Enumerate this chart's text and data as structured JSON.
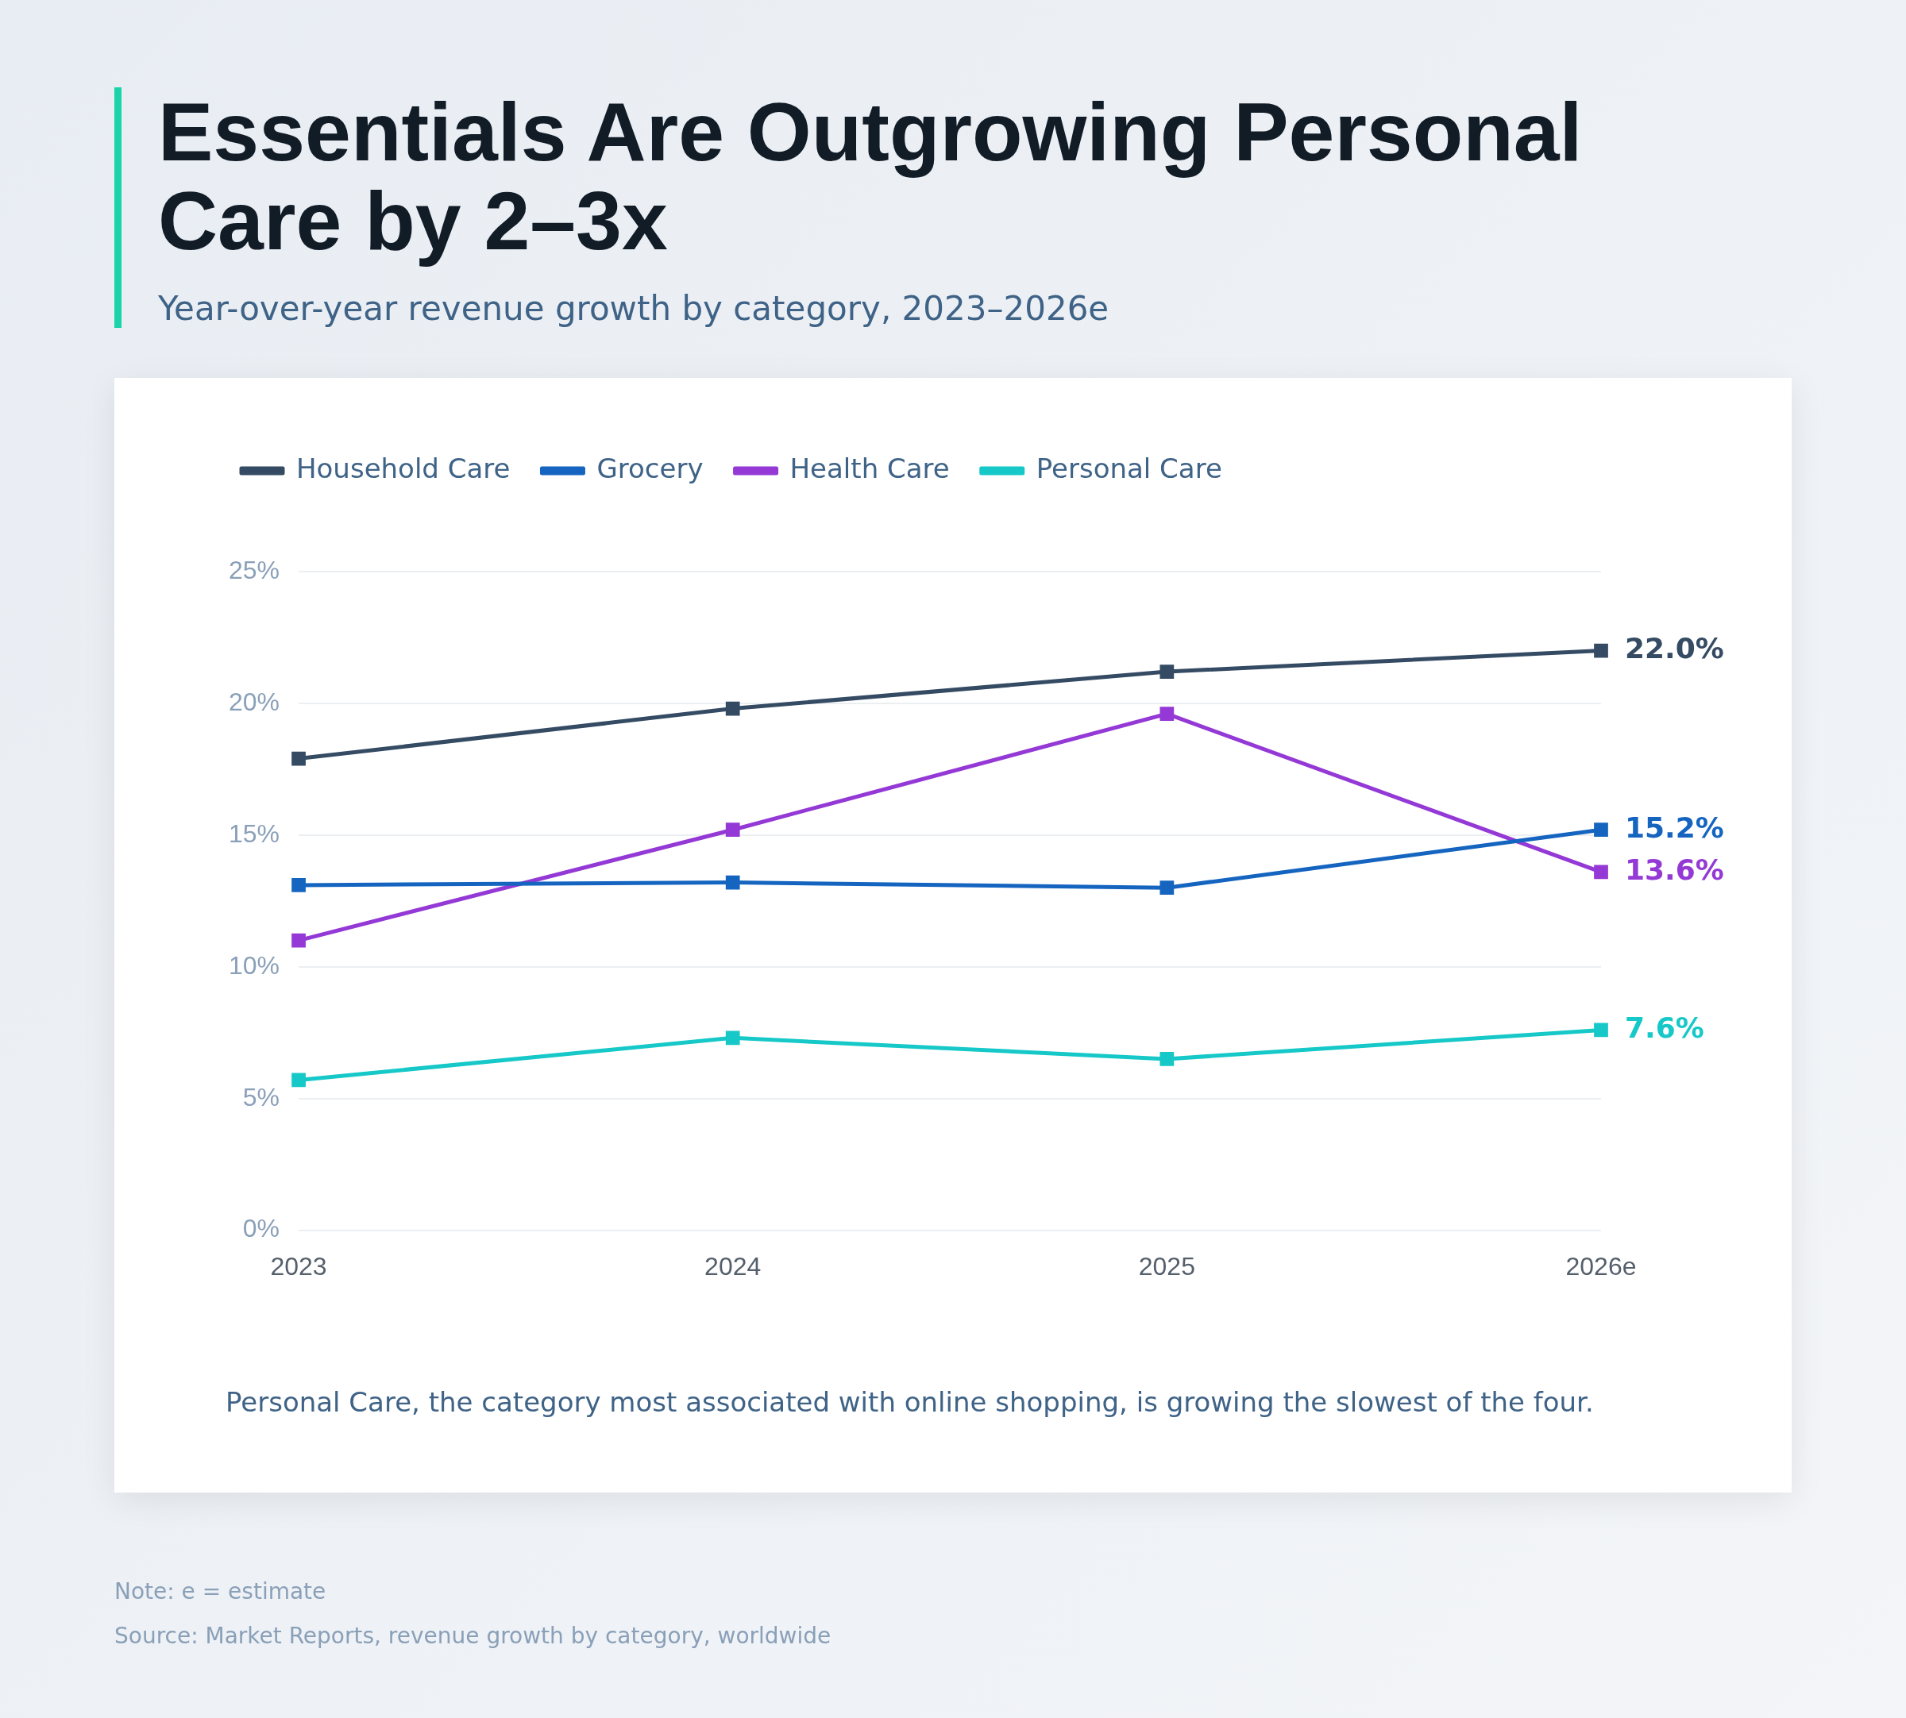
{
  "chart_data": {
    "type": "line",
    "title": "Essentials Are Outgrowing Personal Care by 2–3x",
    "subtitle": "Year-over-year revenue growth by category, 2023–2026e",
    "categories": [
      "2023",
      "2024",
      "2025",
      "2026e"
    ],
    "series": [
      {
        "name": "Household Care",
        "color": "#344b63",
        "values": [
          17.9,
          19.8,
          21.2,
          22.0
        ],
        "value_labels": [
          null,
          null,
          null,
          "22.0%"
        ]
      },
      {
        "name": "Grocery",
        "color": "#1565c0",
        "values": [
          13.1,
          13.2,
          13.0,
          15.2
        ],
        "value_labels": [
          null,
          null,
          null,
          "15.2%"
        ]
      },
      {
        "name": "Health Care",
        "color": "#9438d6",
        "values": [
          11.0,
          15.2,
          19.6,
          13.6
        ],
        "value_labels": [
          null,
          null,
          null,
          "13.6%"
        ]
      },
      {
        "name": "Personal Care",
        "color": "#16c8c8",
        "values": [
          5.7,
          7.3,
          6.5,
          7.6
        ],
        "value_labels": [
          null,
          null,
          null,
          "7.6%"
        ]
      }
    ],
    "ylim": [
      0,
      25
    ],
    "yticks": [
      {
        "value": 0,
        "label": "0%"
      },
      {
        "value": 5,
        "label": "5%"
      },
      {
        "value": 10,
        "label": "10%"
      },
      {
        "value": 15,
        "label": "15%"
      },
      {
        "value": 20,
        "label": "20%"
      },
      {
        "value": 25,
        "label": "25%"
      }
    ],
    "grid": "y",
    "legend": "top left",
    "marker": "square",
    "line_style": "solid",
    "annotations": [
      "Personal Care, the category most associated with online shopping, is growing the slowest of the four.",
      "Note: e = estimate",
      "Source: Market Reports, revenue growth by category, worldwide"
    ]
  }
}
